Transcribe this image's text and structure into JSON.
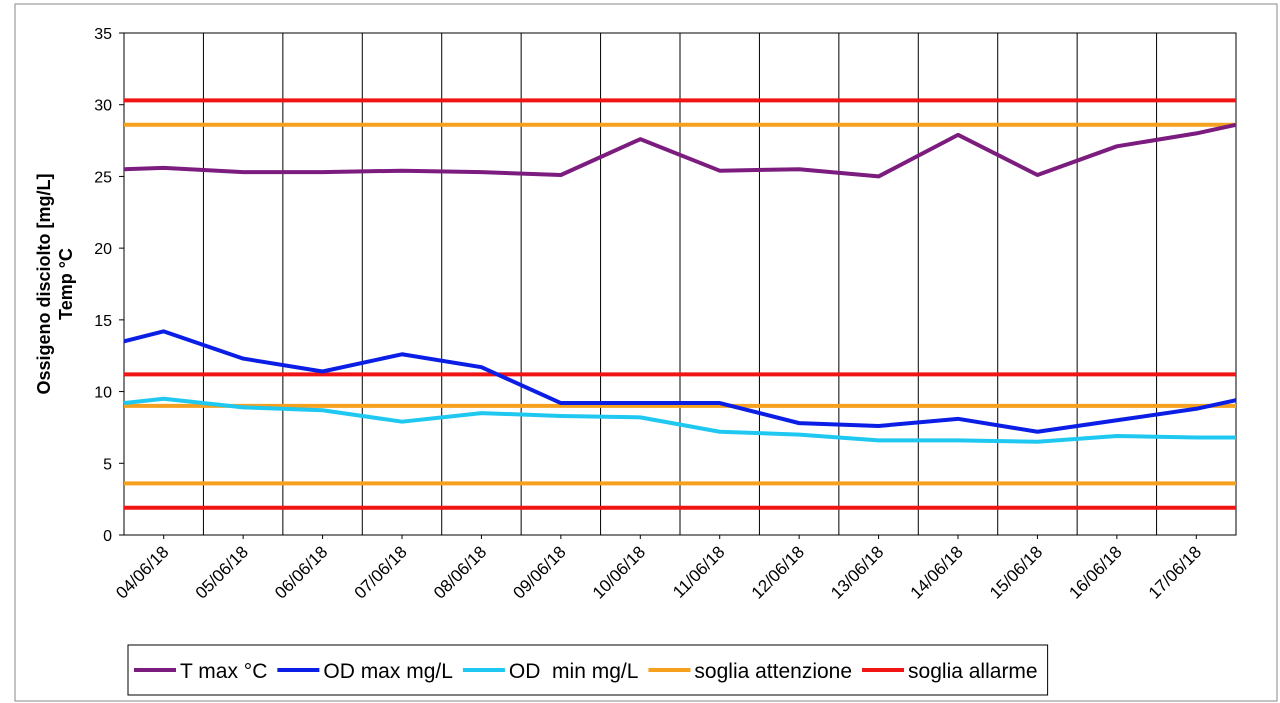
{
  "chart_data": {
    "type": "line",
    "y_label_lines": [
      "Ossigeno disciolto [mg/L]",
      "Temp °C"
    ],
    "x": [
      0,
      0.5,
      1.5,
      2.5,
      3.5,
      4.5,
      5.5,
      6.5,
      7.5,
      8.5,
      9.5,
      10.5,
      11.5,
      12.5,
      13.5,
      14
    ],
    "xlim": [
      0,
      14
    ],
    "xticks": [
      {
        "value": 0.5,
        "label": "04/06/18"
      },
      {
        "value": 1.5,
        "label": "05/06/18"
      },
      {
        "value": 2.5,
        "label": "06/06/18"
      },
      {
        "value": 3.5,
        "label": "07/06/18"
      },
      {
        "value": 4.5,
        "label": "08/06/18"
      },
      {
        "value": 5.5,
        "label": "09/06/18"
      },
      {
        "value": 6.5,
        "label": "10/06/18"
      },
      {
        "value": 7.5,
        "label": "11/06/18"
      },
      {
        "value": 8.5,
        "label": "12/06/18"
      },
      {
        "value": 9.5,
        "label": "13/06/18"
      },
      {
        "value": 10.5,
        "label": "14/06/18"
      },
      {
        "value": 11.5,
        "label": "15/06/18"
      },
      {
        "value": 12.5,
        "label": "16/06/18"
      },
      {
        "value": 13.5,
        "label": "17/06/18"
      }
    ],
    "xgrid": [
      0,
      1,
      2,
      3,
      4,
      5,
      6,
      7,
      8,
      9,
      10,
      11,
      12,
      13,
      14
    ],
    "ylim": [
      0,
      35
    ],
    "yticks": [
      0,
      5,
      10,
      15,
      20,
      25,
      30,
      35
    ],
    "grid": "x",
    "legend": "bottom",
    "series": [
      {
        "name": "T max °C",
        "color": "#7b1c7e",
        "values": [
          25.5,
          25.6,
          25.3,
          25.3,
          25.4,
          25.3,
          25.1,
          27.6,
          25.4,
          25.5,
          25.0,
          27.9,
          25.1,
          27.1,
          28.0,
          28.6
        ]
      },
      {
        "name": "OD max mg/L",
        "color": "#0a1ee6",
        "values": [
          13.5,
          14.2,
          12.3,
          11.4,
          12.6,
          11.7,
          9.2,
          9.2,
          9.2,
          7.8,
          7.6,
          8.1,
          7.2,
          8.0,
          8.8,
          9.4
        ]
      },
      {
        "name": "OD  min mg/L",
        "color": "#1ec8f0",
        "values": [
          9.2,
          9.5,
          8.9,
          8.7,
          7.9,
          8.5,
          8.3,
          8.2,
          7.2,
          7.0,
          6.6,
          6.6,
          6.5,
          6.9,
          6.8,
          6.8
        ]
      },
      {
        "name": "soglia attenzione",
        "color": "#f5a01e",
        "levels": [
          28.6,
          9.0,
          3.6
        ]
      },
      {
        "name": "soglia allarme",
        "color": "#f01414",
        "levels": [
          30.3,
          11.2,
          1.9
        ]
      }
    ]
  }
}
